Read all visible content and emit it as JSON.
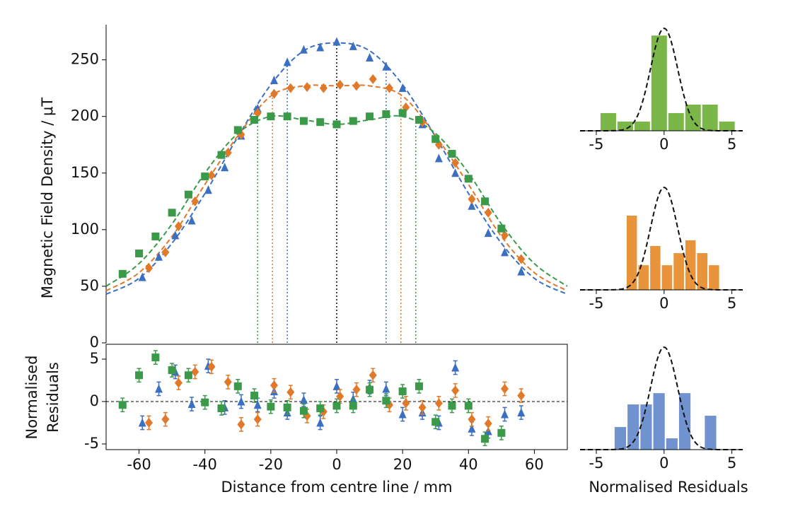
{
  "chart_data": [
    {
      "type": "scatter",
      "ylabel": "Magnetic Field Density / μT",
      "xlim": [
        -70,
        70
      ],
      "ylim": [
        0,
        281
      ],
      "yticks": [
        0,
        50,
        100,
        150,
        200,
        250
      ],
      "series": [
        {
          "color": "#3b6fc2",
          "marker": "triangle",
          "x": [
            -59,
            -54,
            -49,
            -44,
            -39,
            -34,
            -29,
            -24,
            -19,
            -15,
            -10,
            -5,
            0,
            5,
            10,
            15,
            20,
            26,
            31,
            36,
            41,
            46,
            51,
            56
          ],
          "values": [
            58,
            76,
            95,
            108,
            135,
            155,
            183,
            207,
            232,
            248,
            259,
            261,
            266,
            262,
            252,
            244,
            225,
            193,
            163,
            150,
            121,
            97,
            80,
            63
          ]
        },
        {
          "color": "#e0792a",
          "marker": "diamond",
          "x": [
            -57,
            -52,
            -48,
            -43,
            -38,
            -33,
            -29,
            -24,
            -19,
            -14,
            -9,
            -4,
            1,
            6,
            11,
            16,
            21,
            26,
            31,
            36,
            41,
            46,
            51,
            56
          ],
          "values": [
            66,
            80,
            103,
            125,
            148,
            168,
            184,
            203,
            220,
            225,
            226,
            225,
            228,
            227,
            233,
            225,
            208,
            195,
            175,
            159,
            127,
            115,
            95,
            74
          ]
        },
        {
          "color": "#3a9a4a",
          "marker": "square",
          "x": [
            -65,
            -60,
            -55,
            -50,
            -45,
            -40,
            -35,
            -30,
            -25,
            -20,
            -15,
            -10,
            -5,
            0,
            5,
            10,
            15,
            20,
            25,
            30,
            35,
            40,
            45,
            50
          ],
          "values": [
            61,
            79,
            94,
            115,
            131,
            147,
            166,
            188,
            197,
            200,
            200,
            196,
            195,
            193,
            196,
            200,
            202,
            203,
            197,
            180,
            167,
            145,
            125,
            101
          ]
        }
      ],
      "fits": [
        {
          "color": "#3b6fc2",
          "x": [
            -70,
            -60,
            -50,
            -40,
            -30,
            -20,
            -10,
            0,
            10,
            20,
            30,
            40,
            50,
            60,
            70
          ],
          "values": [
            43,
            57,
            88,
            132,
            182,
            228,
            258,
            265,
            258,
            228,
            182,
            132,
            88,
            57,
            43
          ]
        },
        {
          "color": "#e0792a",
          "x": [
            -70,
            -60,
            -50,
            -40,
            -30,
            -20,
            -10,
            0,
            10,
            20,
            30,
            40,
            50,
            60,
            70
          ],
          "values": [
            46,
            62,
            94,
            140,
            183,
            218,
            227,
            227,
            227,
            218,
            183,
            140,
            94,
            62,
            46
          ]
        },
        {
          "color": "#3a9a4a",
          "x": [
            -70,
            -60,
            -50,
            -40,
            -30,
            -20,
            -10,
            0,
            10,
            20,
            30,
            40,
            50,
            60,
            70
          ],
          "values": [
            50,
            70,
            105,
            150,
            185,
            200,
            197,
            193,
            197,
            200,
            185,
            150,
            105,
            70,
            50
          ]
        }
      ],
      "vlines": [
        {
          "x": 0,
          "top": 266,
          "color": "#000000"
        },
        {
          "x": -15,
          "top": 248,
          "color": "#3b6fc2"
        },
        {
          "x": 15,
          "top": 248,
          "color": "#3b6fc2"
        },
        {
          "x": -19.5,
          "top": 220,
          "color": "#e0792a"
        },
        {
          "x": 19.5,
          "top": 220,
          "color": "#e0792a"
        },
        {
          "x": -24,
          "top": 198,
          "color": "#3a9a4a"
        },
        {
          "x": 24,
          "top": 198,
          "color": "#3a9a4a"
        }
      ]
    },
    {
      "type": "errorbar",
      "ylabel": [
        "Normalised",
        "Residuals"
      ],
      "xlabel": "Distance from centre line / mm",
      "xlim": [
        -70,
        70
      ],
      "xticks": [
        -60,
        -40,
        -20,
        0,
        20,
        40,
        60
      ],
      "ylim": [
        -5.67,
        6.75
      ],
      "yticks": [
        -5,
        0,
        5
      ],
      "hline": 0,
      "series": [
        {
          "color": "#3b6fc2",
          "marker": "triangle",
          "error": 0.8,
          "x": [
            -59,
            -54,
            -49,
            -44,
            -39,
            -34,
            -29,
            -24,
            -19,
            -15,
            -10,
            -5,
            0,
            5,
            10,
            15,
            20,
            26,
            31,
            36,
            41,
            46,
            51,
            56
          ],
          "values": [
            -2.5,
            1.5,
            3.5,
            -0.3,
            4.2,
            -0.7,
            0,
            -0.4,
            1.2,
            -1.3,
            0.2,
            -2.5,
            1.8,
            0.3,
            1.7,
            1.5,
            -1.5,
            -1.3,
            -2.5,
            4,
            -3.2,
            -3.5,
            -1.5,
            -1.3
          ]
        },
        {
          "color": "#e0792a",
          "marker": "diamond",
          "error": 0.8,
          "x": [
            -57,
            -52,
            -48,
            -43,
            -38,
            -33,
            -29,
            -24,
            -19,
            -14,
            -9,
            -4,
            1,
            6,
            11,
            16,
            21,
            26,
            31,
            36,
            41,
            46,
            51,
            56
          ],
          "values": [
            -2.5,
            -2.1,
            2.2,
            3.5,
            4.1,
            2.3,
            -2.7,
            -2.1,
            1.9,
            1.1,
            -1.7,
            -1.2,
            0.6,
            1.4,
            3.1,
            -0.4,
            -0.2,
            -0.7,
            -0.2,
            1.3,
            -2.1,
            -2.6,
            1.5,
            0.7
          ]
        },
        {
          "color": "#3a9a4a",
          "marker": "square",
          "error": 0.8,
          "x": [
            -65,
            -60,
            -55,
            -50,
            -45,
            -40,
            -35,
            -30,
            -25,
            -20,
            -15,
            -10,
            -5,
            0,
            5,
            10,
            15,
            20,
            25,
            30,
            35,
            40,
            45,
            50
          ],
          "values": [
            -0.4,
            3.1,
            5.2,
            3.7,
            3.1,
            -0.1,
            -0.8,
            1.8,
            0.7,
            -0.6,
            -0.7,
            -1.1,
            -0.8,
            -0.5,
            -0.5,
            1.4,
            0.1,
            1.2,
            1.8,
            -2.4,
            -0.5,
            -0.5,
            -4.4,
            -3.7
          ]
        }
      ]
    },
    {
      "type": "histogram",
      "color": "#7ab648",
      "bins": [
        -4.74,
        -3.49,
        -2.24,
        -0.99,
        0.26,
        1.51,
        2.76,
        4.01,
        5.26
      ],
      "values": [
        0.069,
        0.036,
        0.036,
        0.371,
        0.069,
        0.102,
        0.102,
        0.036
      ],
      "xlim": [
        -6.2,
        5.8
      ],
      "xticks": [
        -5,
        0,
        5
      ],
      "ylim": [
        0,
        0.413
      ],
      "curve": {
        "mean": 0,
        "sd": 1
      }
    },
    {
      "type": "histogram",
      "color": "#e8943a",
      "bins": [
        -2.81,
        -1.95,
        -1.08,
        -0.22,
        0.65,
        1.52,
        2.38,
        3.25,
        4.11
      ],
      "values": [
        0.289,
        0.096,
        0.171,
        0.096,
        0.143,
        0.193,
        0.143,
        0.096
      ],
      "xlim": [
        -6.2,
        5.8
      ],
      "xticks": [
        -5,
        0,
        5
      ],
      "ylim": [
        0,
        0.413
      ],
      "curve": {
        "mean": 0,
        "sd": 1
      }
    },
    {
      "type": "histogram",
      "color": "#7093d0",
      "bins": [
        -3.7,
        -2.75,
        -1.8,
        -0.85,
        0.1,
        1.05,
        2.0,
        2.95,
        3.9
      ],
      "values": [
        0.088,
        0.176,
        0.176,
        0.22,
        0.044,
        0.22,
        0,
        0.132
      ],
      "xlim": [
        -6.2,
        5.8
      ],
      "xticks": [
        -5,
        0,
        5
      ],
      "ylim": [
        0,
        0.413
      ],
      "curve": {
        "mean": 0,
        "sd": 1
      },
      "xlabel": "Normalised Residuals"
    }
  ]
}
